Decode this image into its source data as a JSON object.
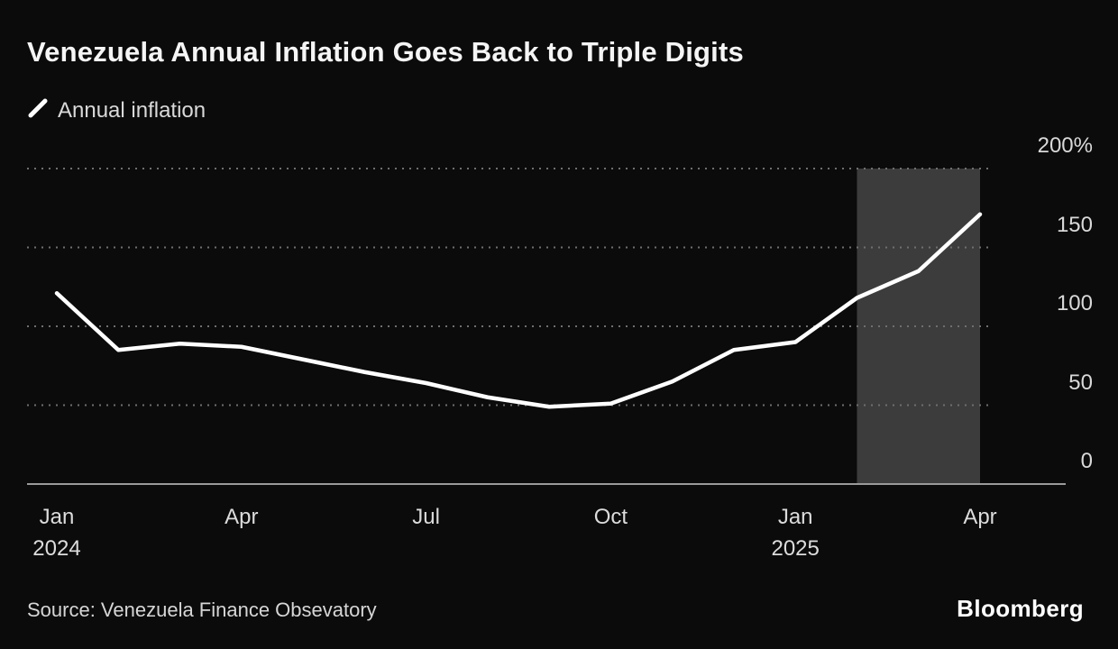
{
  "chart_data": {
    "type": "line",
    "title": "Venezuela Annual Inflation Goes Back to Triple Digits",
    "legend_label": "Annual inflation",
    "source": "Source: Venezuela Finance Obsevatory",
    "brand": "Bloomberg",
    "unit": "%",
    "months": [
      "Jan 2024",
      "Feb 2024",
      "Mar 2024",
      "Apr 2024",
      "May 2024",
      "Jun 2024",
      "Jul 2024",
      "Aug 2024",
      "Sep 2024",
      "Oct 2024",
      "Nov 2024",
      "Dec 2024",
      "Jan 2025",
      "Feb 2025",
      "Mar 2025",
      "Apr 2025"
    ],
    "values": [
      121,
      85,
      89,
      87,
      79,
      71,
      64,
      55,
      49,
      51,
      65,
      85,
      90,
      118,
      135,
      171
    ],
    "ylim": [
      0,
      200
    ],
    "y_ticks": [
      {
        "value": 200,
        "label": "200%"
      },
      {
        "value": 150,
        "label": "150"
      },
      {
        "value": 100,
        "label": "100"
      },
      {
        "value": 50,
        "label": "50"
      },
      {
        "value": 0,
        "label": "0"
      }
    ],
    "x_ticks": [
      {
        "index": 0,
        "label": "Jan",
        "year": "2024"
      },
      {
        "index": 3,
        "label": "Apr"
      },
      {
        "index": 6,
        "label": "Jul"
      },
      {
        "index": 9,
        "label": "Oct"
      },
      {
        "index": 12,
        "label": "Jan",
        "year": "2025"
      },
      {
        "index": 15,
        "label": "Apr"
      }
    ],
    "highlight_band": {
      "start_month": "Feb 2025",
      "end_month": "Apr 2025",
      "start_index": 13,
      "end_index": 15
    },
    "grid": "dotted-horizontal",
    "legend_position": "top-left",
    "colors": {
      "background": "#0b0b0b",
      "line": "#ffffff",
      "grid": "#6f6f6f",
      "axis": "#9a9a9a",
      "band": "#3c3c3c",
      "title": "#f5f5f5",
      "label": "#d9d9d9"
    }
  }
}
